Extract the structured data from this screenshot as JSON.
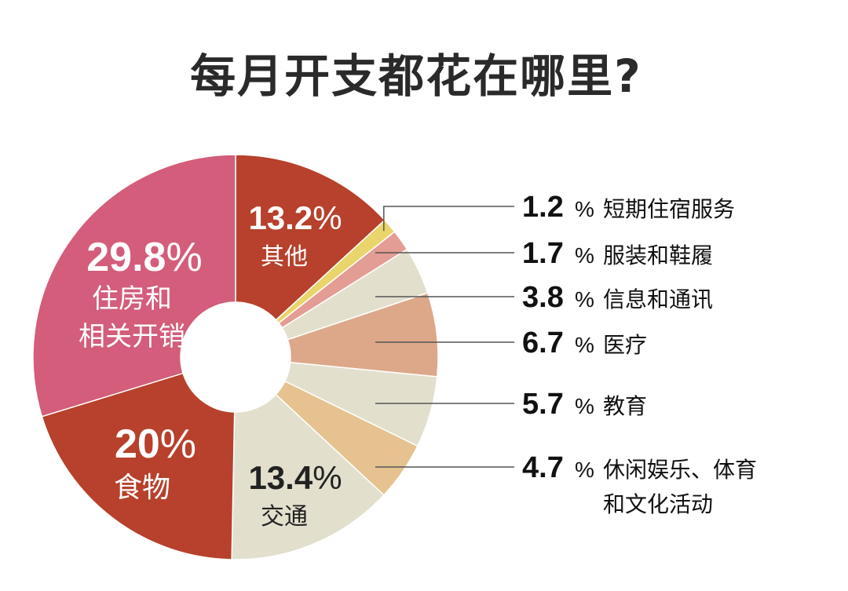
{
  "chart_data": {
    "type": "pie",
    "title": "每月开支都花在哪里?",
    "donut": true,
    "percent_sign": "%",
    "slices": [
      {
        "value": 13.2,
        "label": "13.2",
        "name": "其他",
        "color": "#b7412c"
      },
      {
        "value": 1.2,
        "label": "1.2",
        "name": "短期住宿服务",
        "color": "#e9d56b"
      },
      {
        "value": 1.7,
        "label": "1.7",
        "name": "服装和鞋履",
        "color": "#e39d94"
      },
      {
        "value": 3.8,
        "label": "3.8",
        "name": "信息和通讯",
        "color": "#e2dfcd"
      },
      {
        "value": 6.7,
        "label": "6.7",
        "name": "医疗",
        "color": "#dca889"
      },
      {
        "value": 5.7,
        "label": "5.7",
        "name": "教育",
        "color": "#e2dfcd"
      },
      {
        "value": 4.7,
        "label": "4.7",
        "name": "休闲娱乐、体育和文化活动",
        "name_lines": [
          "休闲娱乐、体育",
          "和文化活动"
        ],
        "color": "#e5c28f"
      },
      {
        "value": 13.4,
        "label": "13.4",
        "name": "交通",
        "color": "#e2dfcd"
      },
      {
        "value": 20,
        "label": "20",
        "name": "食物",
        "color": "#b7412c"
      },
      {
        "value": 29.8,
        "label": "29.8",
        "name": "住房和相关开销",
        "name_lines": [
          "住房和",
          "相关开销"
        ],
        "color": "#d35d7a"
      }
    ]
  }
}
